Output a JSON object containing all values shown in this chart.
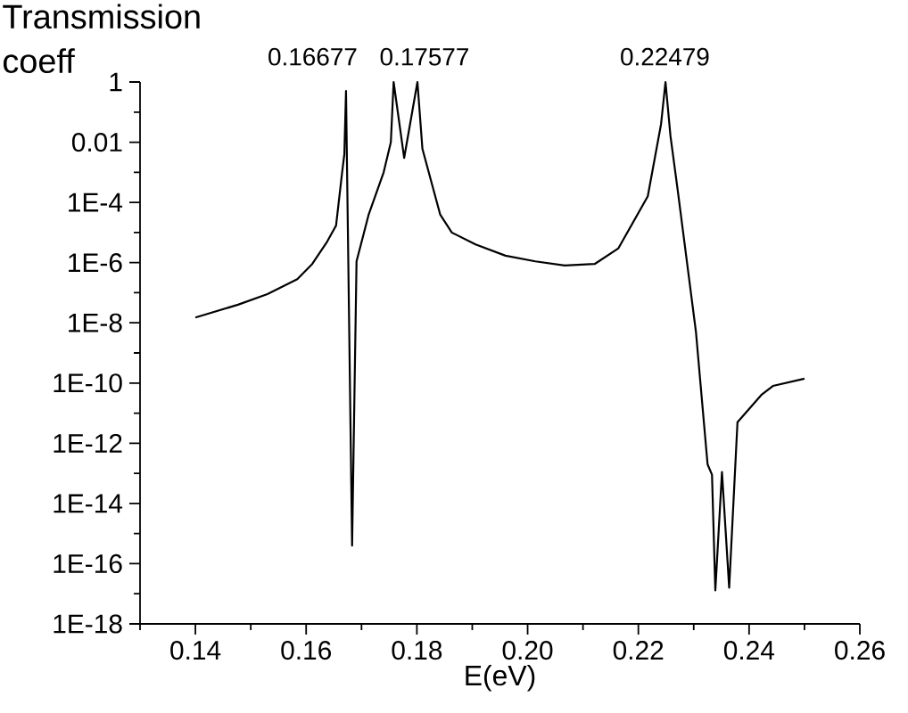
{
  "chart_data": {
    "type": "line",
    "xlabel": "E(eV)",
    "ylabel": "Transmission coeff",
    "x": [
      0.14,
      0.1477,
      0.153,
      0.1584,
      0.1611,
      0.1638,
      0.1654,
      0.1665,
      0.1669,
      0.1672,
      0.1683,
      0.1691,
      0.1713,
      0.174,
      0.1753,
      0.1758,
      0.1777,
      0.1801,
      0.181,
      0.1842,
      0.1863,
      0.1906,
      0.196,
      0.2014,
      0.2067,
      0.2121,
      0.2164,
      0.2217,
      0.2241,
      0.2249,
      0.2258,
      0.2271,
      0.2304,
      0.2325,
      0.2333,
      0.2339,
      0.2351,
      0.2364,
      0.2379,
      0.2422,
      0.2443,
      0.25
    ],
    "values": [
      1.5e-08,
      4e-08,
      9e-08,
      2.8e-07,
      9e-07,
      5e-06,
      1.7e-05,
      0.001,
      0.004,
      0.5,
      4e-16,
      1.1e-06,
      4e-05,
      0.001,
      0.01,
      1,
      0.003,
      1,
      0.006,
      4e-05,
      1e-05,
      4e-06,
      1.7e-06,
      1.1e-06,
      8e-07,
      9e-07,
      3e-06,
      0.00016,
      0.04,
      1,
      0.016,
      0.00026,
      5e-09,
      2e-13,
      9e-14,
      1.3e-17,
      1.1e-13,
      1.6e-17,
      5e-12,
      4e-11,
      8e-11,
      1.4e-10
    ],
    "color": "#000000",
    "log": "y",
    "grid": false,
    "marker": "none",
    "line_style": "solid",
    "xlim": [
      0.13,
      0.26
    ],
    "xticks": [
      {
        "value": 0.13,
        "label": null
      },
      {
        "value": 0.14,
        "label": "0.14"
      },
      {
        "value": 0.15,
        "label": null
      },
      {
        "value": 0.16,
        "label": "0.16"
      },
      {
        "value": 0.17,
        "label": null
      },
      {
        "value": 0.18,
        "label": "0.18"
      },
      {
        "value": 0.19,
        "label": null
      },
      {
        "value": 0.2,
        "label": "0.20"
      },
      {
        "value": 0.21,
        "label": null
      },
      {
        "value": 0.22,
        "label": "0.22"
      },
      {
        "value": 0.23,
        "label": null
      },
      {
        "value": 0.24,
        "label": "0.24"
      },
      {
        "value": 0.25,
        "label": null
      },
      {
        "value": 0.26,
        "label": "0.26"
      }
    ],
    "ylim": [
      1e-18,
      1
    ],
    "yticks": [
      {
        "value": 1e-18,
        "label": "1E-18"
      },
      {
        "value": 1e-17,
        "label": null
      },
      {
        "value": 1e-16,
        "label": "1E-16"
      },
      {
        "value": 1e-15,
        "label": null
      },
      {
        "value": 1e-14,
        "label": "1E-14"
      },
      {
        "value": 1e-13,
        "label": null
      },
      {
        "value": 1e-12,
        "label": "1E-12"
      },
      {
        "value": 1e-11,
        "label": null
      },
      {
        "value": 1e-10,
        "label": "1E-10"
      },
      {
        "value": 1e-09,
        "label": null
      },
      {
        "value": 1e-08,
        "label": "1E-8"
      },
      {
        "value": 1e-07,
        "label": null
      },
      {
        "value": 1e-06,
        "label": "1E-6"
      },
      {
        "value": 1e-05,
        "label": null
      },
      {
        "value": 0.0001,
        "label": "1E-4"
      },
      {
        "value": 0.001,
        "label": null
      },
      {
        "value": 0.01,
        "label": "0.01"
      },
      {
        "value": 0.1,
        "label": null
      },
      {
        "value": 1,
        "label": "1"
      }
    ],
    "annotations": [
      {
        "text": "0.16677",
        "x": 0.16677,
        "y": 1
      },
      {
        "text": "0.17577",
        "x": 0.17577,
        "y": 1
      },
      {
        "text": "0.22479",
        "x": 0.22479,
        "y": 1
      }
    ]
  }
}
